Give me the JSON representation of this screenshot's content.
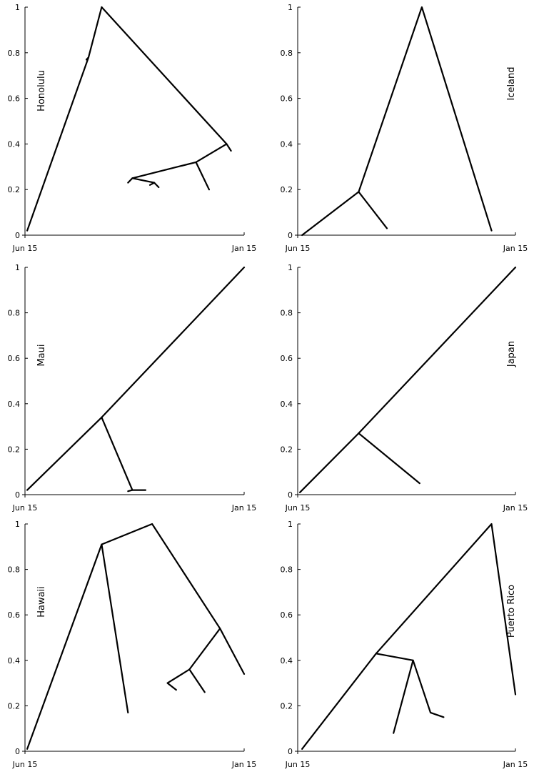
{
  "chart_data": [
    {
      "type": "line",
      "title": "",
      "label": "Honolulu",
      "x_tick_labels": [
        "Jun 15",
        "Jan 15"
      ],
      "y_ticks": [
        "0",
        "0.2",
        "0.4",
        "0.6",
        "0.8",
        "1"
      ],
      "ylim": [
        0,
        1
      ],
      "series": [
        {
          "x": [
            0.01,
            0.29,
            0.35
          ],
          "y": [
            0.02,
            0.78,
            1.0
          ]
        },
        {
          "x": [
            0.28,
            0.29
          ],
          "y": [
            0.77,
            0.78
          ]
        },
        {
          "x": [
            0.35,
            0.92,
            0.94
          ],
          "y": [
            1.0,
            0.4,
            0.37
          ]
        },
        {
          "x": [
            0.92,
            0.78,
            0.84
          ],
          "y": [
            0.4,
            0.32,
            0.2
          ]
        },
        {
          "x": [
            0.78,
            0.49,
            0.47
          ],
          "y": [
            0.32,
            0.25,
            0.23
          ]
        },
        {
          "x": [
            0.49,
            0.59,
            0.61
          ],
          "y": [
            0.25,
            0.23,
            0.21
          ]
        },
        {
          "x": [
            0.57,
            0.59
          ],
          "y": [
            0.22,
            0.23
          ]
        }
      ]
    },
    {
      "type": "line",
      "title": "",
      "label": "Iceland",
      "x_tick_labels": [
        "Jun 15",
        "Jan 15"
      ],
      "y_ticks": [
        "0",
        "0.2",
        "0.4",
        "0.6",
        "0.8",
        "1"
      ],
      "ylim": [
        0,
        1
      ],
      "series": [
        {
          "x": [
            0.02,
            0.28,
            0.57,
            0.89
          ],
          "y": [
            0.0,
            0.19,
            1.0,
            0.02
          ]
        },
        {
          "x": [
            0.28,
            0.41
          ],
          "y": [
            0.19,
            0.03
          ]
        }
      ]
    },
    {
      "type": "line",
      "title": "",
      "label": "Maui",
      "x_tick_labels": [
        "Jun 15",
        "Jan 15"
      ],
      "y_ticks": [
        "0",
        "0.2",
        "0.4",
        "0.6",
        "0.8",
        "1"
      ],
      "ylim": [
        0,
        1
      ],
      "series": [
        {
          "x": [
            0.01,
            0.35,
            1.0
          ],
          "y": [
            0.02,
            0.34,
            1.0
          ]
        },
        {
          "x": [
            0.35,
            0.49,
            0.55
          ],
          "y": [
            0.34,
            0.02,
            0.02
          ]
        },
        {
          "x": [
            0.47,
            0.49
          ],
          "y": [
            0.015,
            0.02
          ]
        }
      ]
    },
    {
      "type": "line",
      "title": "",
      "label": "Japan",
      "x_tick_labels": [
        "Jun 15",
        "Jan 15"
      ],
      "y_ticks": [
        "0",
        "0.2",
        "0.4",
        "0.6",
        "0.8",
        "1"
      ],
      "ylim": [
        0,
        1
      ],
      "series": [
        {
          "x": [
            0.01,
            0.28,
            1.0
          ],
          "y": [
            0.01,
            0.27,
            1.0
          ]
        },
        {
          "x": [
            0.28,
            0.56
          ],
          "y": [
            0.27,
            0.05
          ]
        }
      ]
    },
    {
      "type": "line",
      "title": "",
      "label": "Hawaii",
      "x_tick_labels": [
        "Jun 15",
        "Jan 15"
      ],
      "y_ticks": [
        "0",
        "0.2",
        "0.4",
        "0.6",
        "0.8",
        "1"
      ],
      "ylim": [
        0,
        1
      ],
      "series": [
        {
          "x": [
            0.01,
            0.35,
            0.58,
            0.89,
            1.0
          ],
          "y": [
            0.01,
            0.91,
            1.0,
            0.54,
            0.34
          ]
        },
        {
          "x": [
            0.35,
            0.47
          ],
          "y": [
            0.91,
            0.17
          ]
        },
        {
          "x": [
            0.89,
            0.75,
            0.82
          ],
          "y": [
            0.54,
            0.36,
            0.26
          ]
        },
        {
          "x": [
            0.75,
            0.65,
            0.69
          ],
          "y": [
            0.36,
            0.3,
            0.27
          ]
        }
      ]
    },
    {
      "type": "line",
      "title": "",
      "label": "Puerto Rico",
      "x_tick_labels": [
        "Jun 15",
        "Jan 15"
      ],
      "y_ticks": [
        "0",
        "0.2",
        "0.4",
        "0.6",
        "0.8",
        "1"
      ],
      "ylim": [
        0,
        1
      ],
      "series": [
        {
          "x": [
            0.02,
            0.36,
            0.89,
            1.0
          ],
          "y": [
            0.01,
            0.43,
            1.0,
            0.25
          ]
        },
        {
          "x": [
            0.36,
            0.53,
            0.61,
            0.67
          ],
          "y": [
            0.43,
            0.4,
            0.17,
            0.15
          ]
        },
        {
          "x": [
            0.53,
            0.44
          ],
          "y": [
            0.4,
            0.08
          ]
        }
      ]
    }
  ]
}
